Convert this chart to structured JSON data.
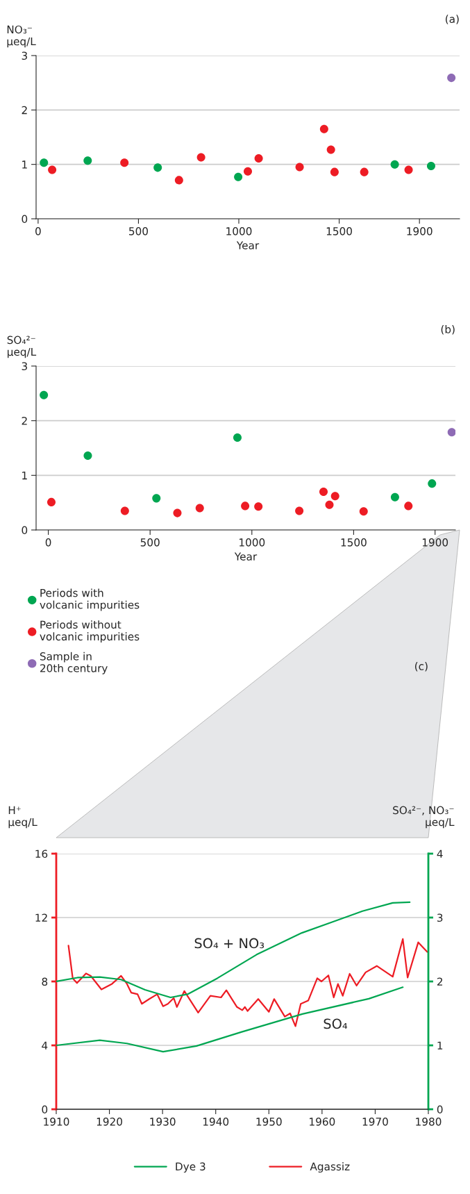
{
  "chart_data": [
    {
      "type": "scatter",
      "title": "(a)",
      "xlabel": "Year",
      "ylabel": "NO₃⁻\nµeq/L",
      "xlim": [
        -10,
        2100
      ],
      "ylim": [
        0,
        3
      ],
      "xticks": [
        0,
        500,
        1000,
        1500,
        1900
      ],
      "yticks": [
        0,
        1,
        2,
        3
      ],
      "grid": "y",
      "marker": "circle",
      "series": [
        {
          "color": "#00a651",
          "x": [
            29,
            247,
            596,
            997,
            1777,
            1958
          ],
          "values": [
            1.03,
            1.07,
            0.94,
            0.77,
            1.0,
            0.97
          ]
        },
        {
          "color": "#ed1c24",
          "x": [
            70,
            430,
            702,
            812,
            1045,
            1099,
            1303,
            1425,
            1459,
            1477,
            1625,
            1846
          ],
          "values": [
            0.9,
            1.03,
            0.71,
            1.13,
            0.87,
            1.11,
            0.95,
            1.65,
            1.27,
            0.86,
            0.86,
            0.9
          ]
        },
        {
          "color": "#8e6bb5",
          "x": [
            2059
          ],
          "values": [
            2.59
          ]
        }
      ]
    },
    {
      "type": "scatter",
      "title": "(b)",
      "xlabel": "Year",
      "ylabel": "SO₄²⁻\nµeq/L",
      "xlim": [
        -60,
        2000
      ],
      "ylim": [
        0,
        3
      ],
      "xticks": [
        0,
        500,
        1000,
        1500,
        1900
      ],
      "yticks": [
        0,
        1,
        2,
        3
      ],
      "grid": "y",
      "marker": "circle",
      "legend": "bottom left",
      "series": [
        {
          "name": "Periods with\nvolcanic impurities",
          "color": "#00a651",
          "x": [
            -22,
            194,
            531,
            929,
            1703,
            1885
          ],
          "values": [
            2.47,
            1.36,
            0.58,
            1.69,
            0.6,
            0.85
          ]
        },
        {
          "name": "Periods without\nvolcanic impurities",
          "color": "#ed1c24",
          "x": [
            15,
            376,
            634,
            744,
            967,
            1032,
            1233,
            1352,
            1381,
            1409,
            1549,
            1769
          ],
          "values": [
            0.51,
            0.35,
            0.31,
            0.4,
            0.44,
            0.43,
            0.35,
            0.7,
            0.46,
            0.62,
            0.34,
            0.44
          ]
        },
        {
          "name": "Sample in\n20th century",
          "color": "#8e6bb5",
          "x": [
            1982
          ],
          "values": [
            1.79
          ]
        }
      ]
    },
    {
      "type": "line",
      "title": "(c)",
      "ylabel": "H⁺\nµeq/L",
      "y2label": "SO₄²⁻, NO₃⁻\nµeq/L",
      "xlim": [
        1910,
        1980
      ],
      "xticks": [
        1910,
        1920,
        1930,
        1940,
        1950,
        1960,
        1970,
        1980
      ],
      "ylim": [
        0,
        16
      ],
      "yticks": [
        0,
        4,
        8,
        12,
        16
      ],
      "y2lim": [
        0,
        4
      ],
      "y2ticks": [
        0,
        1,
        2,
        3,
        4
      ],
      "grid": "y",
      "legend": "bottom",
      "line_style": "solid",
      "annotations": [
        "SO₄ + NO₃",
        "SO₄"
      ],
      "series": [
        {
          "name": "Dye 3",
          "color": "#00a651",
          "axis": "y2",
          "x": [
            1910,
            1914,
            1918.2,
            1922.2,
            1926.7,
            1931.5,
            1934.7,
            1940.3,
            1947.7,
            1956.2,
            1961.9,
            1967.6,
            1973.3,
            1976.5
          ],
          "values": [
            2.0,
            2.06,
            2.07,
            2.03,
            1.87,
            1.75,
            1.8,
            2.05,
            2.42,
            2.76,
            2.93,
            3.1,
            3.23,
            3.24
          ]
        },
        {
          "color": "#00a651",
          "axis": "y2",
          "x": [
            1910,
            1918.2,
            1923.3,
            1930.1,
            1936.4,
            1944.9,
            1956.3,
            1968.8,
            1975.2
          ],
          "values": [
            1.0,
            1.08,
            1.03,
            0.9,
            0.99,
            1.21,
            1.49,
            1.73,
            1.91
          ]
        },
        {
          "name": "Agassiz",
          "color": "#ed1c24",
          "x": [
            1912.3,
            1913.1,
            1913.9,
            1915.6,
            1916.5,
            1918.5,
            1920.5,
            1922.2,
            1923.3,
            1924.1,
            1925.3,
            1926.1,
            1927.5,
            1929,
            1930.1,
            1931,
            1932.1,
            1932.7,
            1934.1,
            1936.7,
            1939,
            1941,
            1942,
            1944,
            1945,
            1945.5,
            1946,
            1948,
            1950,
            1951,
            1953,
            1954,
            1955,
            1956,
            1957.4,
            1959.1,
            1959.9,
            1961.2,
            1962.2,
            1963,
            1963.9,
            1965.2,
            1966.5,
            1968.2,
            1970.3,
            1973.3,
            1975.2,
            1976.1,
            1978.1,
            1979.8
          ],
          "values": [
            10.25,
            8.2,
            7.9,
            8.5,
            8.35,
            7.5,
            7.85,
            8.35,
            7.85,
            7.3,
            7.2,
            6.6,
            6.9,
            7.2,
            6.45,
            6.6,
            6.96,
            6.4,
            7.4,
            6.05,
            7.1,
            7.0,
            7.45,
            6.4,
            6.2,
            6.4,
            6.15,
            6.9,
            6.1,
            6.9,
            5.8,
            6.0,
            5.2,
            6.6,
            6.8,
            8.2,
            8.0,
            8.38,
            7.0,
            7.84,
            7.1,
            8.48,
            7.74,
            8.57,
            8.97,
            8.3,
            10.66,
            8.24,
            10.45,
            9.85
          ]
        }
      ]
    }
  ]
}
